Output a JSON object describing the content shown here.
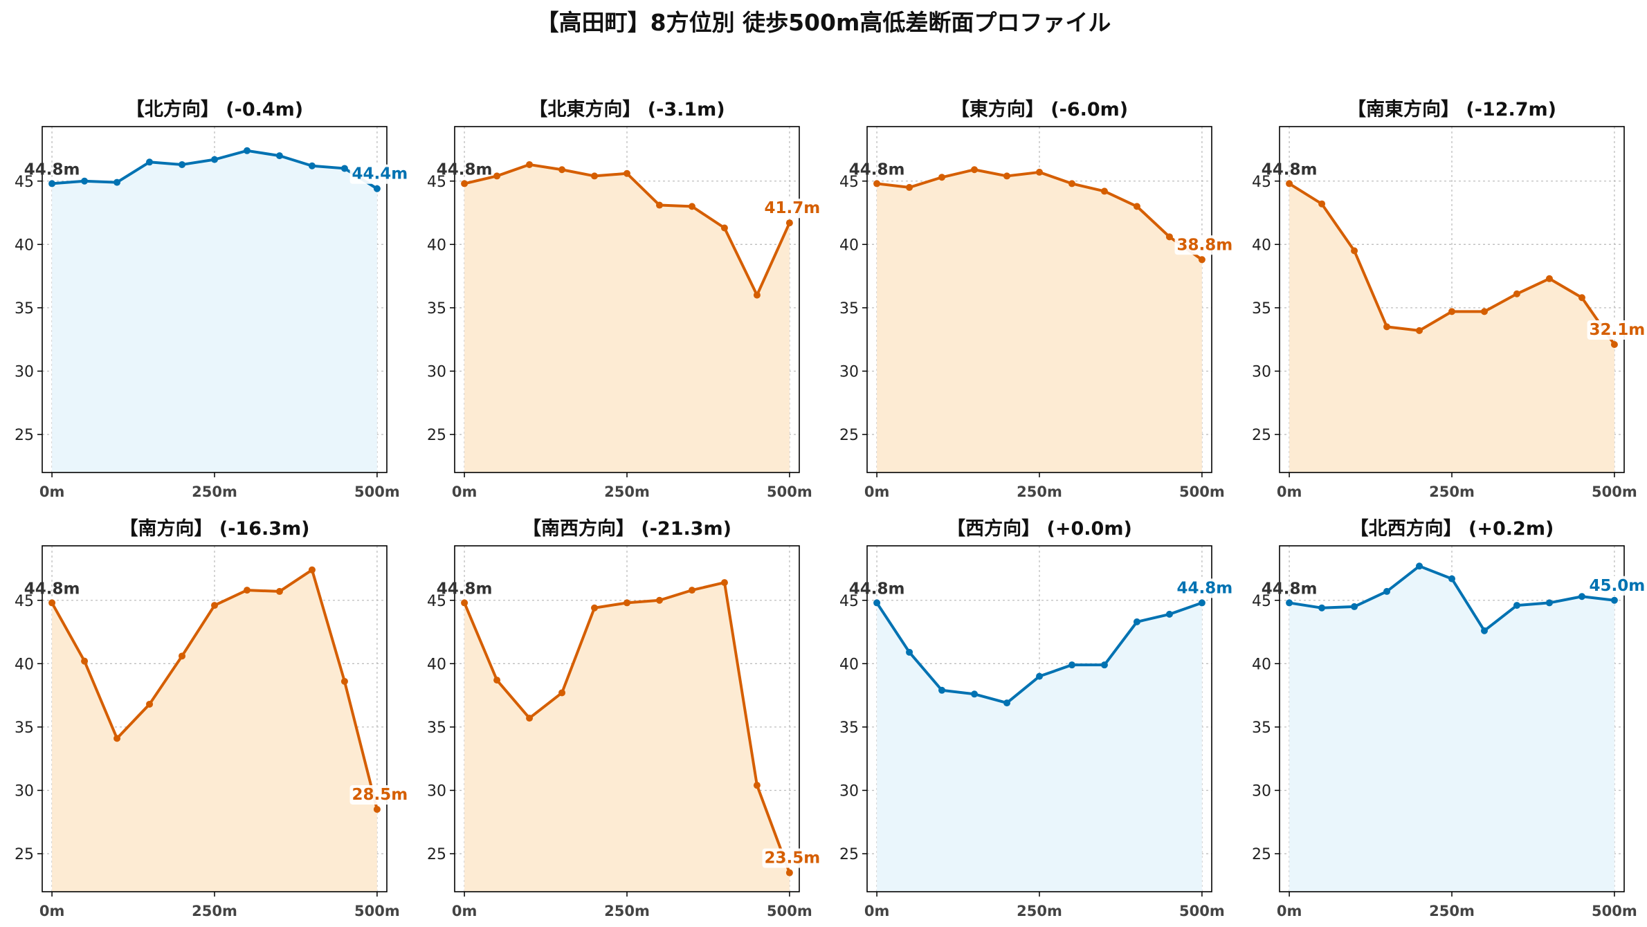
{
  "title": "【高田町】8方位別 徒歩500m高低差断面プロファイル",
  "colors": {
    "up": "#0072B2",
    "down": "#D55E00",
    "fill_up": "#EAF6FC",
    "fill_down": "#FDEBD3",
    "text": "#111111"
  },
  "chart_data": [
    {
      "type": "area",
      "title": "【北方向】 (-0.4m)",
      "color_key": "up",
      "x": [
        0,
        50,
        100,
        150,
        200,
        250,
        300,
        350,
        400,
        450,
        500
      ],
      "values": [
        44.8,
        45.0,
        44.9,
        46.5,
        46.3,
        46.7,
        47.4,
        47.0,
        46.2,
        46.0,
        44.4
      ],
      "start_label": "44.8m",
      "end_label": "44.4m",
      "xticks": [
        "0m",
        "250m",
        "500m"
      ],
      "xtick_values": [
        0,
        250,
        500
      ],
      "yticks": [
        "25",
        "30",
        "35",
        "40",
        "45"
      ],
      "ytick_values": [
        25,
        30,
        35,
        40,
        45
      ],
      "xlim": [
        -15,
        515
      ],
      "ylim": [
        22,
        49.3
      ],
      "grid": true
    },
    {
      "type": "area",
      "title": "【北東方向】 (-3.1m)",
      "color_key": "down",
      "x": [
        0,
        50,
        100,
        150,
        200,
        250,
        300,
        350,
        400,
        450,
        500
      ],
      "values": [
        44.8,
        45.4,
        46.3,
        45.9,
        45.4,
        45.6,
        43.1,
        43.0,
        41.3,
        36.0,
        41.7
      ],
      "start_label": "44.8m",
      "end_label": "41.7m",
      "xticks": [
        "0m",
        "250m",
        "500m"
      ],
      "xtick_values": [
        0,
        250,
        500
      ],
      "yticks": [
        "25",
        "30",
        "35",
        "40",
        "45"
      ],
      "ytick_values": [
        25,
        30,
        35,
        40,
        45
      ],
      "xlim": [
        -15,
        515
      ],
      "ylim": [
        22,
        49.3
      ],
      "grid": true
    },
    {
      "type": "area",
      "title": "【東方向】 (-6.0m)",
      "color_key": "down",
      "x": [
        0,
        50,
        100,
        150,
        200,
        250,
        300,
        350,
        400,
        450,
        500
      ],
      "values": [
        44.8,
        44.5,
        45.3,
        45.9,
        45.4,
        45.7,
        44.8,
        44.2,
        43.0,
        40.6,
        38.8
      ],
      "start_label": "44.8m",
      "end_label": "38.8m",
      "xticks": [
        "0m",
        "250m",
        "500m"
      ],
      "xtick_values": [
        0,
        250,
        500
      ],
      "yticks": [
        "25",
        "30",
        "35",
        "40",
        "45"
      ],
      "ytick_values": [
        25,
        30,
        35,
        40,
        45
      ],
      "xlim": [
        -15,
        515
      ],
      "ylim": [
        22,
        49.3
      ],
      "grid": true
    },
    {
      "type": "area",
      "title": "【南東方向】 (-12.7m)",
      "color_key": "down",
      "x": [
        0,
        50,
        100,
        150,
        200,
        250,
        300,
        350,
        400,
        450,
        500
      ],
      "values": [
        44.8,
        43.2,
        39.5,
        33.5,
        33.2,
        34.7,
        34.7,
        36.1,
        37.3,
        35.8,
        32.1
      ],
      "start_label": "44.8m",
      "end_label": "32.1m",
      "xticks": [
        "0m",
        "250m",
        "500m"
      ],
      "xtick_values": [
        0,
        250,
        500
      ],
      "yticks": [
        "25",
        "30",
        "35",
        "40",
        "45"
      ],
      "ytick_values": [
        25,
        30,
        35,
        40,
        45
      ],
      "xlim": [
        -15,
        515
      ],
      "ylim": [
        22,
        49.3
      ],
      "grid": true
    },
    {
      "type": "area",
      "title": "【南方向】 (-16.3m)",
      "color_key": "down",
      "x": [
        0,
        50,
        100,
        150,
        200,
        250,
        300,
        350,
        400,
        450,
        500
      ],
      "values": [
        44.8,
        40.2,
        34.1,
        36.8,
        40.6,
        44.6,
        45.8,
        45.7,
        47.4,
        38.6,
        28.5
      ],
      "start_label": "44.8m",
      "end_label": "28.5m",
      "xticks": [
        "0m",
        "250m",
        "500m"
      ],
      "xtick_values": [
        0,
        250,
        500
      ],
      "yticks": [
        "25",
        "30",
        "35",
        "40",
        "45"
      ],
      "ytick_values": [
        25,
        30,
        35,
        40,
        45
      ],
      "xlim": [
        -15,
        515
      ],
      "ylim": [
        22,
        49.3
      ],
      "grid": true
    },
    {
      "type": "area",
      "title": "【南西方向】 (-21.3m)",
      "color_key": "down",
      "x": [
        0,
        50,
        100,
        150,
        200,
        250,
        300,
        350,
        400,
        450,
        500
      ],
      "values": [
        44.8,
        38.7,
        35.7,
        37.7,
        44.4,
        44.8,
        45.0,
        45.8,
        46.4,
        30.4,
        23.5
      ],
      "start_label": "44.8m",
      "end_label": "23.5m",
      "xticks": [
        "0m",
        "250m",
        "500m"
      ],
      "xtick_values": [
        0,
        250,
        500
      ],
      "yticks": [
        "25",
        "30",
        "35",
        "40",
        "45"
      ],
      "ytick_values": [
        25,
        30,
        35,
        40,
        45
      ],
      "xlim": [
        -15,
        515
      ],
      "ylim": [
        22,
        49.3
      ],
      "grid": true
    },
    {
      "type": "area",
      "title": "【西方向】 (+0.0m)",
      "color_key": "up",
      "x": [
        0,
        50,
        100,
        150,
        200,
        250,
        300,
        350,
        400,
        450,
        500
      ],
      "values": [
        44.8,
        40.9,
        37.9,
        37.6,
        36.9,
        39.0,
        39.9,
        39.9,
        43.3,
        43.9,
        44.8
      ],
      "start_label": "44.8m",
      "end_label": "44.8m",
      "xticks": [
        "0m",
        "250m",
        "500m"
      ],
      "xtick_values": [
        0,
        250,
        500
      ],
      "yticks": [
        "25",
        "30",
        "35",
        "40",
        "45"
      ],
      "ytick_values": [
        25,
        30,
        35,
        40,
        45
      ],
      "xlim": [
        -15,
        515
      ],
      "ylim": [
        22,
        49.3
      ],
      "grid": true
    },
    {
      "type": "area",
      "title": "【北西方向】 (+0.2m)",
      "color_key": "up",
      "x": [
        0,
        50,
        100,
        150,
        200,
        250,
        300,
        350,
        400,
        450,
        500
      ],
      "values": [
        44.8,
        44.4,
        44.5,
        45.7,
        47.7,
        46.7,
        42.6,
        44.6,
        44.8,
        45.3,
        45.0
      ],
      "start_label": "44.8m",
      "end_label": "45.0m",
      "xticks": [
        "0m",
        "250m",
        "500m"
      ],
      "xtick_values": [
        0,
        250,
        500
      ],
      "yticks": [
        "25",
        "30",
        "35",
        "40",
        "45"
      ],
      "ytick_values": [
        25,
        30,
        35,
        40,
        45
      ],
      "xlim": [
        -15,
        515
      ],
      "ylim": [
        22,
        49.3
      ],
      "grid": true
    }
  ]
}
